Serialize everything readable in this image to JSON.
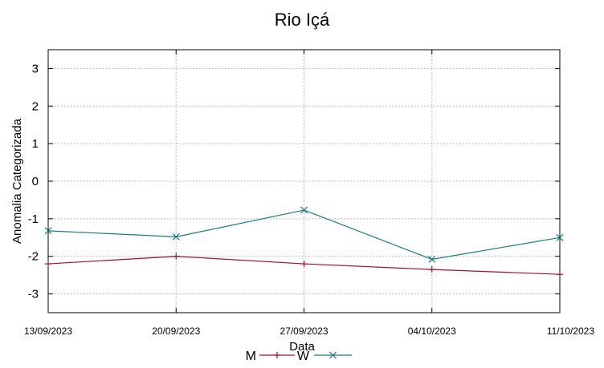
{
  "chart_data": {
    "type": "line",
    "title": "Rio Içá",
    "xlabel": "Data",
    "ylabel": "Anomalia Categorizada",
    "ylim": [
      -3.5,
      3.5
    ],
    "yticks": [
      3,
      2,
      1,
      0,
      -1,
      -2,
      -3
    ],
    "ytick_labels": [
      "3",
      "2",
      "1",
      "0",
      "-1",
      "-2",
      "-3"
    ],
    "grid": true,
    "legend_position": "bottom-center",
    "categories": [
      "13/09/2023",
      "20/09/2023",
      "27/09/2023",
      "04/10/2023",
      "11/10/2023"
    ],
    "series": [
      {
        "name": "M",
        "color": "#a0102a",
        "marker": "plus",
        "values": [
          -2.2,
          -2.0,
          -2.2,
          -2.35,
          -2.48
        ]
      },
      {
        "name": "W",
        "color": "#1a7a80",
        "marker": "cross",
        "values": [
          -1.32,
          -1.48,
          -0.77,
          -2.08,
          -1.5
        ]
      }
    ]
  }
}
